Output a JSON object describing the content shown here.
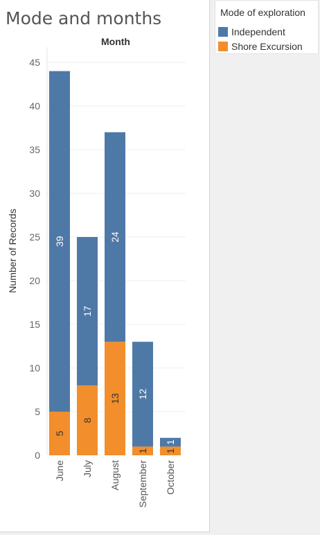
{
  "title": "Mode and months",
  "legend": {
    "title": "Mode of exploration",
    "items": [
      {
        "label": "Independent",
        "color": "#4e79a7"
      },
      {
        "label": "Shore Excursion",
        "color": "#f28e2b"
      }
    ]
  },
  "chart_data": {
    "type": "bar",
    "stacked": true,
    "orientation": "vertical",
    "header": "Month",
    "ylabel": "Number of Records",
    "categories": [
      "June",
      "July",
      "August",
      "September",
      "October"
    ],
    "yticks": [
      0,
      5,
      10,
      15,
      20,
      25,
      30,
      35,
      40,
      45
    ],
    "ylim": [
      0,
      45
    ],
    "grid": true,
    "legend_position": "right",
    "series": [
      {
        "name": "Shore Excursion",
        "color": "#f28e2b",
        "values": [
          5,
          8,
          13,
          1,
          1
        ],
        "labels": [
          "5",
          "8",
          "13",
          "1",
          "1"
        ]
      },
      {
        "name": "Independent",
        "color": "#4e79a7",
        "values": [
          39,
          17,
          24,
          12,
          1
        ],
        "labels": [
          "39",
          "17",
          "24",
          "12",
          "1"
        ]
      }
    ]
  }
}
